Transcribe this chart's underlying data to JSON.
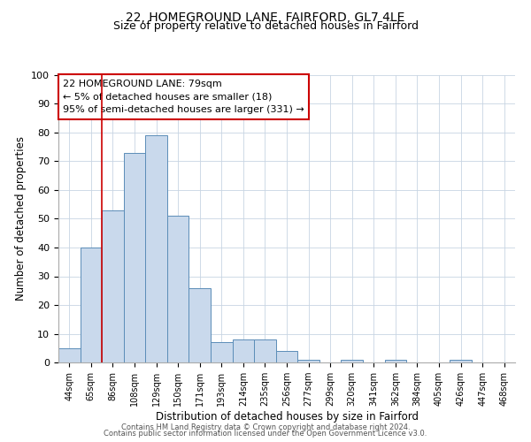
{
  "title1": "22, HOMEGROUND LANE, FAIRFORD, GL7 4LE",
  "title2": "Size of property relative to detached houses in Fairford",
  "xlabel": "Distribution of detached houses by size in Fairford",
  "ylabel": "Number of detached properties",
  "bar_labels": [
    "44sqm",
    "65sqm",
    "86sqm",
    "108sqm",
    "129sqm",
    "150sqm",
    "171sqm",
    "193sqm",
    "214sqm",
    "235sqm",
    "256sqm",
    "277sqm",
    "299sqm",
    "320sqm",
    "341sqm",
    "362sqm",
    "384sqm",
    "405sqm",
    "426sqm",
    "447sqm",
    "468sqm"
  ],
  "bar_values": [
    5,
    40,
    53,
    73,
    79,
    51,
    26,
    7,
    8,
    8,
    4,
    1,
    0,
    1,
    0,
    1,
    0,
    0,
    1,
    0,
    0
  ],
  "bar_color": "#c9d9ec",
  "bar_edge_color": "#5b8db8",
  "annotation_text_line1": "22 HOMEGROUND LANE: 79sqm",
  "annotation_text_line2": "← 5% of detached houses are smaller (18)",
  "annotation_text_line3": "95% of semi-detached houses are larger (331) →",
  "annotation_box_color": "#ffffff",
  "annotation_box_edge_color": "#cc0000",
  "red_line_x": 1.5,
  "ylim": [
    0,
    100
  ],
  "yticks": [
    0,
    10,
    20,
    30,
    40,
    50,
    60,
    70,
    80,
    90,
    100
  ],
  "footer1": "Contains HM Land Registry data © Crown copyright and database right 2024.",
  "footer2": "Contains public sector information licensed under the Open Government Licence v3.0.",
  "bg_color": "#ffffff",
  "grid_color": "#c8d4e3",
  "title1_fontsize": 10,
  "title2_fontsize": 9,
  "annotation_fontsize": 8,
  "xlabel_fontsize": 8.5,
  "ylabel_fontsize": 8.5,
  "xtick_fontsize": 7,
  "ytick_fontsize": 8,
  "footer_fontsize": 6
}
